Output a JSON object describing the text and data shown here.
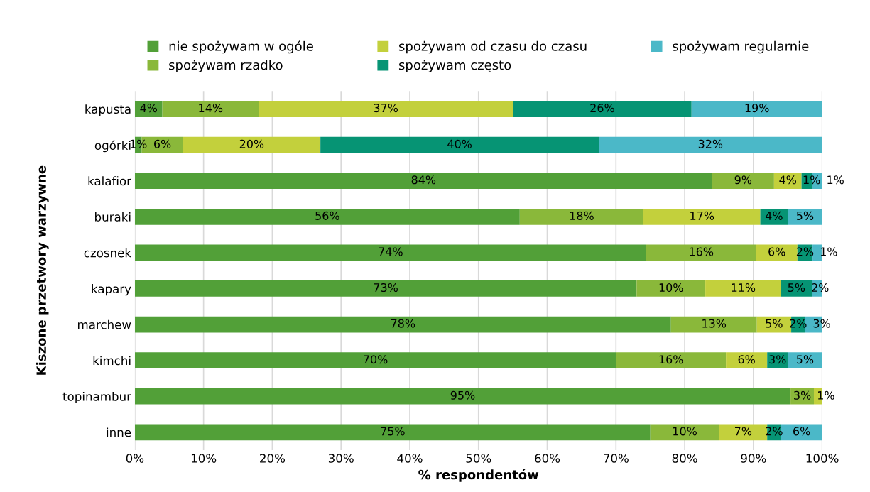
{
  "chart_data": {
    "type": "bar",
    "orientation": "horizontal",
    "stacked": true,
    "xlabel": "% respondentów",
    "ylabel": "Kiszone przetwory warzywne",
    "categories": [
      "kapusta",
      "ogórki",
      "kalafior",
      "buraki",
      "czosnek",
      "kapary",
      "marchew",
      "kimchi",
      "topinambur",
      "inne"
    ],
    "series": [
      {
        "name": "nie spożywam w ogóle",
        "color": "#52a038",
        "values": [
          4,
          1,
          84,
          56,
          74.4,
          73,
          78,
          70,
          95.4,
          75
        ],
        "value_labels": [
          "4%",
          "1%",
          "84%",
          "56%",
          "74%",
          "73%",
          "78%",
          "70%",
          "95%",
          "75%"
        ]
      },
      {
        "name": "spożywam rzadko",
        "color": "#8ab83a",
        "values": [
          14,
          6,
          9,
          18,
          16,
          10,
          12.5,
          16,
          3.4,
          10
        ],
        "value_labels": [
          "14%",
          "6%",
          "9%",
          "18%",
          "16%",
          "10%",
          "13%",
          "16%",
          "3%",
          "10%"
        ]
      },
      {
        "name": "spożywam od czasu do czasu",
        "color": "#c3d03c",
        "values": [
          37,
          20,
          4,
          17,
          6,
          11,
          5,
          6,
          1.2,
          7
        ],
        "value_labels": [
          "37%",
          "20%",
          "4%",
          "17%",
          "6%",
          "11%",
          "5%",
          "6%",
          "1%",
          "7%"
        ]
      },
      {
        "name": "spożywam często",
        "color": "#069474",
        "values": [
          26,
          40.5,
          1.5,
          4,
          2.2,
          4.5,
          2,
          3,
          0,
          2
        ],
        "value_labels": [
          "26%",
          "40%",
          "1%",
          "4%",
          "2%",
          "5%",
          "2%",
          "3%",
          null,
          "2%"
        ]
      },
      {
        "name": "spożywam regularnie",
        "color": "#4bb8c8",
        "values": [
          19,
          32.5,
          1.5,
          5,
          1.4,
          1.5,
          2.5,
          5,
          0,
          6
        ],
        "value_labels": [
          "19%",
          "32%",
          "1%",
          "5%",
          "1%",
          "2%",
          "3%",
          "5%",
          null,
          "6%"
        ]
      }
    ],
    "xlim": [
      0,
      100
    ],
    "xticks": [
      {
        "value": 0,
        "label": "0%"
      },
      {
        "value": 10,
        "label": "10%"
      },
      {
        "value": 20,
        "label": "20%"
      },
      {
        "value": 30,
        "label": "30%"
      },
      {
        "value": 40,
        "label": "40%"
      },
      {
        "value": 50,
        "label": "50%"
      },
      {
        "value": 60,
        "label": "60%"
      },
      {
        "value": 70,
        "label": "70%"
      },
      {
        "value": 80,
        "label": "80%"
      },
      {
        "value": 90,
        "label": "90%"
      },
      {
        "value": 100,
        "label": "100%"
      }
    ],
    "grid": "x",
    "legend": "top"
  }
}
